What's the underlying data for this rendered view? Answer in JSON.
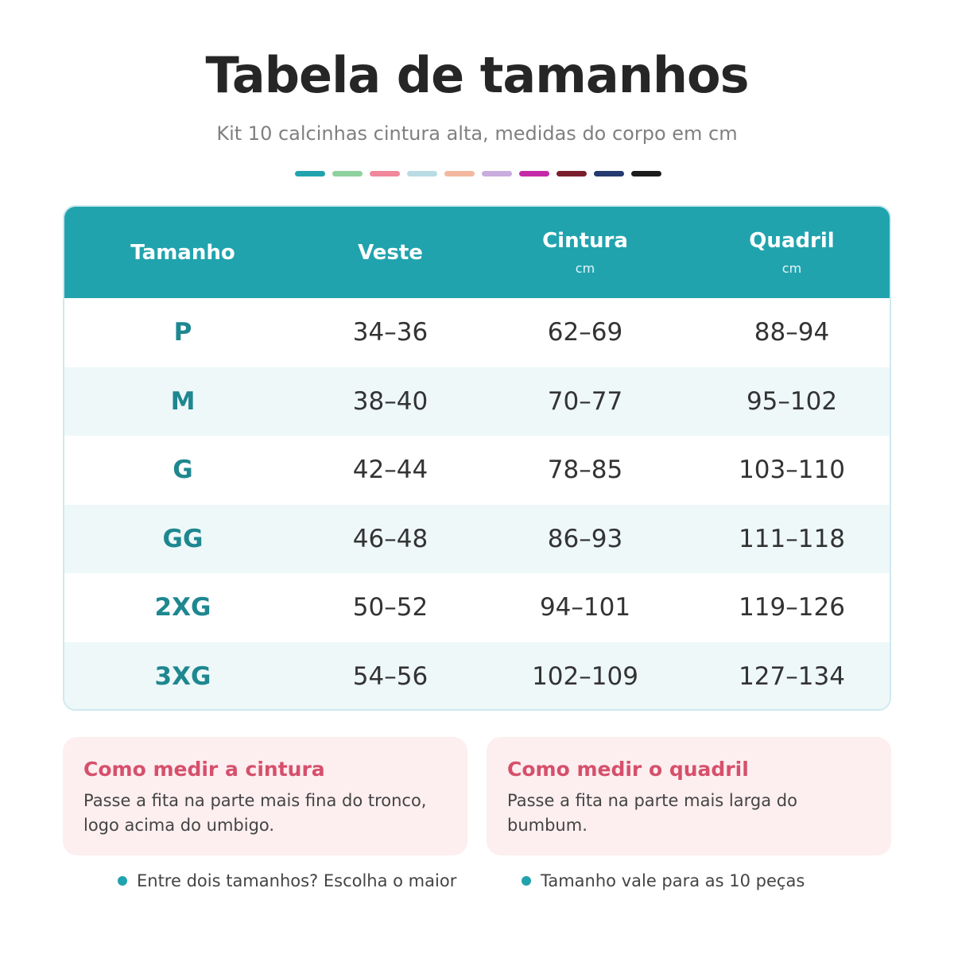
{
  "header": {
    "title": "Tabela de tamanhos",
    "subtitle": "Kit 10 calcinhas cintura alta, medidas do corpo em cm"
  },
  "table": {
    "columns": [
      {
        "label": "Tamanho"
      },
      {
        "label": "Veste"
      },
      {
        "label": "Cintura",
        "unit": "cm"
      },
      {
        "label": "Quadril",
        "unit": "cm"
      }
    ],
    "rows": [
      [
        "P",
        "34–36",
        "62–69",
        "88–94"
      ],
      [
        "M",
        "38–40",
        "70–77",
        "95–102"
      ],
      [
        "G",
        "42–44",
        "78–85",
        "103–110"
      ],
      [
        "GG",
        "46–48",
        "86–93",
        "111–118"
      ],
      [
        "2XG",
        "50–52",
        "94–101",
        "119–126"
      ],
      [
        "3XG",
        "54–56",
        "102–109",
        "127–134"
      ]
    ]
  },
  "notes": [
    {
      "title": "Como medir a cintura",
      "text": "Passe a fita na parte mais fina do tronco, logo acima do umbigo."
    },
    {
      "title": "Como medir o quadril",
      "text": "Passe a fita na parte mais larga do bumbum."
    }
  ],
  "tips": [
    "Entre dois tamanhos? Escolha o maior",
    "Tamanho vale para as 10 peças"
  ]
}
